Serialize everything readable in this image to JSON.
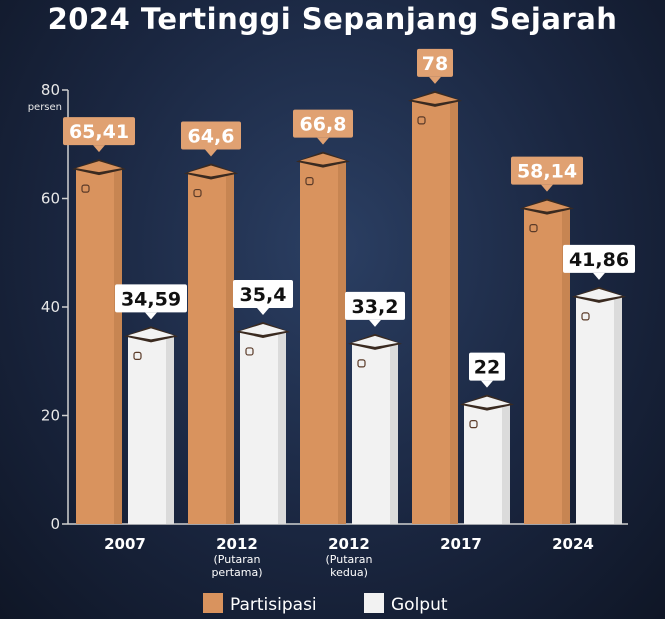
{
  "chart_data": {
    "type": "bar",
    "title": "2024 Tertinggi Sepanjang Sejarah",
    "ylabel": "persen",
    "ylim": [
      0,
      80
    ],
    "yticks": [
      "0",
      "20",
      "40",
      "60",
      "80"
    ],
    "categories": [
      {
        "label": "2007",
        "sub": []
      },
      {
        "label": "2012",
        "sub": [
          "(Putaran",
          "pertama)"
        ]
      },
      {
        "label": "2012",
        "sub": [
          "(Putaran",
          "kedua)"
        ]
      },
      {
        "label": "2017",
        "sub": []
      },
      {
        "label": "2024",
        "sub": []
      }
    ],
    "series": [
      {
        "name": "Partisipasi",
        "values": [
          65.41,
          64.6,
          66.8,
          78,
          58.14
        ],
        "labels": [
          "65,41",
          "64,6",
          "66,8",
          "78",
          "58,14"
        ],
        "color": "#d9935e"
      },
      {
        "name": "Golput",
        "values": [
          34.59,
          35.4,
          33.2,
          22,
          41.86
        ],
        "labels": [
          "34,59",
          "35,4",
          "33,2",
          "22",
          "41,86"
        ],
        "color": "#f2f2f2"
      }
    ],
    "legend_position": "bottom"
  }
}
